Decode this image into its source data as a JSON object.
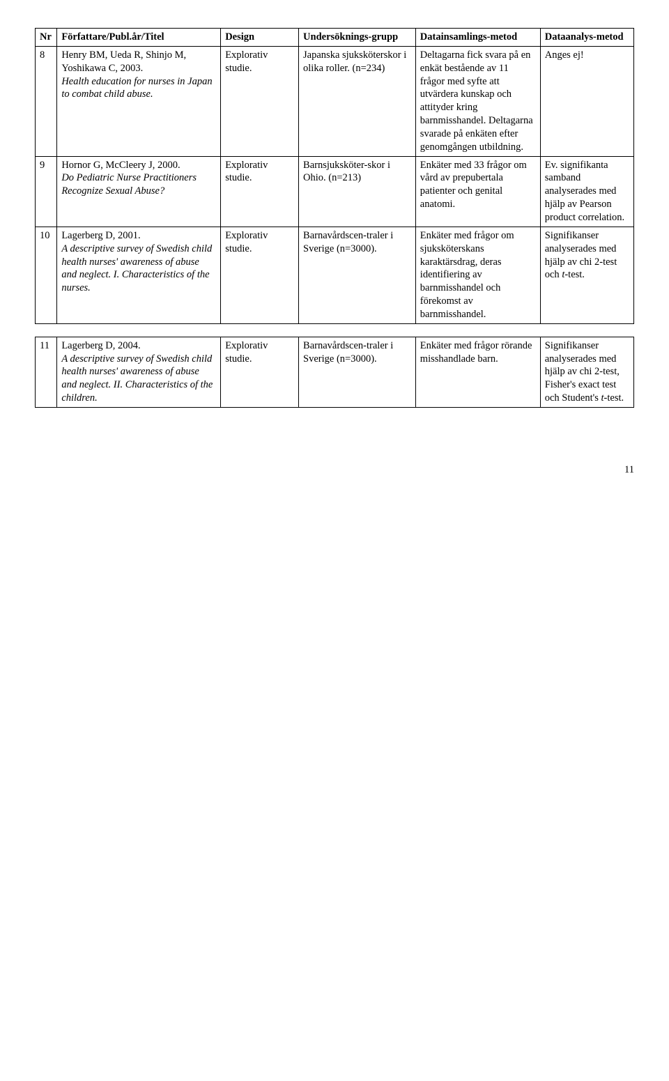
{
  "headers": {
    "nr": "Nr",
    "author": "Författare/Publ.år/Titel",
    "design": "Design",
    "group": "Undersöknings-grupp",
    "collect": "Datainsamlings-metod",
    "analys": "Dataanalys-metod"
  },
  "rows": [
    {
      "nr": "8",
      "author_plain": "Henry BM, Ueda R, Shinjo M, Yoshikawa C, 2003.",
      "author_italic": "Health education for nurses in Japan to combat child abuse.",
      "design": "Explorativ studie.",
      "group": "Japanska sjuksköterskor i olika roller. (n=234)",
      "collect": "Deltagarna fick svara på en enkät bestående av 11 frågor med syfte att utvärdera kunskap och attityder kring barnmisshandel. Deltagarna svarade på enkäten efter genomgången utbildning.",
      "analys": "Anges ej!"
    },
    {
      "nr": "9",
      "author_plain": "Hornor G, McCleery J, 2000.",
      "author_italic": "Do Pediatric Nurse Practitioners Recognize Sexual Abuse?",
      "design": "Explorativ studie.",
      "group": "Barnsjuksköter-skor i Ohio. (n=213)",
      "collect": "Enkäter med 33 frågor om vård av prepubertala patienter och genital anatomi.",
      "analys": "Ev. signifikanta samband analyserades med hjälp av Pearson product correlation."
    },
    {
      "nr": "10",
      "author_plain": "Lagerberg D, 2001.",
      "author_italic": "A descriptive survey of Swedish child health nurses' awareness of abuse and neglect. I. Characteristics of the nurses.",
      "design": "Explorativ studie.",
      "group": "Barnavårdscen-traler i Sverige (n=3000).",
      "collect": "Enkäter med frågor om sjuksköterskans karaktärsdrag, deras identifiering av barnmisshandel och förekomst av barnmisshandel.",
      "analys_html": "Signifikanser analyserades med hjälp av chi 2-test och <span class=\"t-italic\">t</span>-test."
    },
    {
      "nr": "11",
      "author_plain": "Lagerberg D, 2004.",
      "author_italic": "A descriptive survey of Swedish child health nurses' awareness of abuse and neglect. II. Characteristics of the children.",
      "design": "Explorativ studie.",
      "group": "Barnavårdscen-traler i Sverige (n=3000).",
      "collect": "Enkäter med frågor rörande misshandlade barn.",
      "analys_html": "Signifikanser analyserades med hjälp av chi 2-test, Fisher's exact test och Student's <span class=\"t-italic\">t</span>-test."
    }
  ],
  "page": "11"
}
